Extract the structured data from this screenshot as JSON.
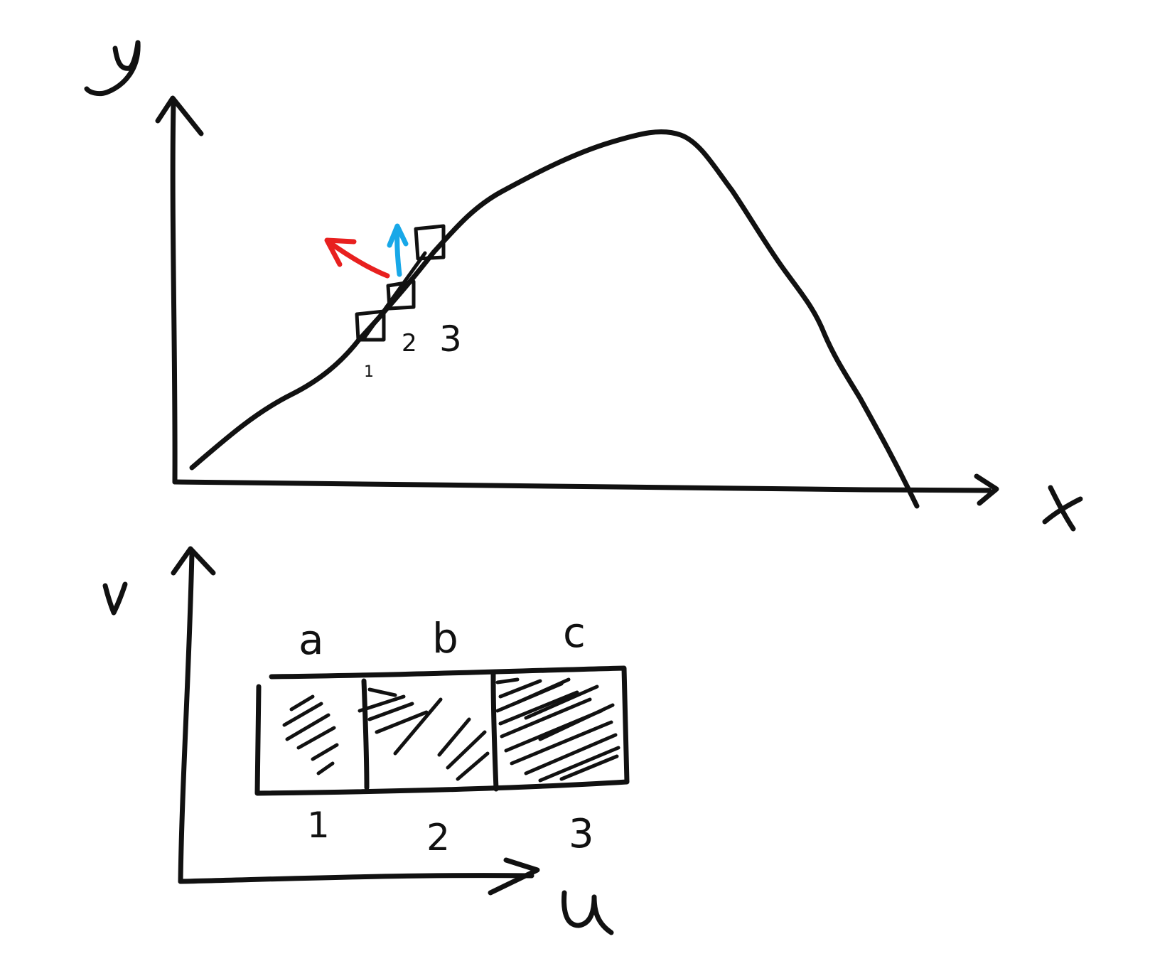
{
  "diagram": {
    "top_plot": {
      "axis_labels": {
        "x": "x",
        "y": "y"
      },
      "square_labels": [
        "1",
        "2",
        "3"
      ],
      "vectors": [
        {
          "name": "tangent",
          "color": "#e8201f"
        },
        {
          "name": "vertical",
          "color": "#18a8e8"
        }
      ]
    },
    "bottom_plot": {
      "axis_labels": {
        "u": "u",
        "v": "v"
      },
      "cell_top_labels": [
        "a",
        "b",
        "c"
      ],
      "cell_bottom_labels": [
        "1",
        "2",
        "3"
      ],
      "cell_shading": [
        "light",
        "medium",
        "dense"
      ]
    },
    "colors": {
      "ink": "#111111",
      "red_arrow": "#e8201f",
      "blue_arrow": "#18a8e8"
    }
  }
}
